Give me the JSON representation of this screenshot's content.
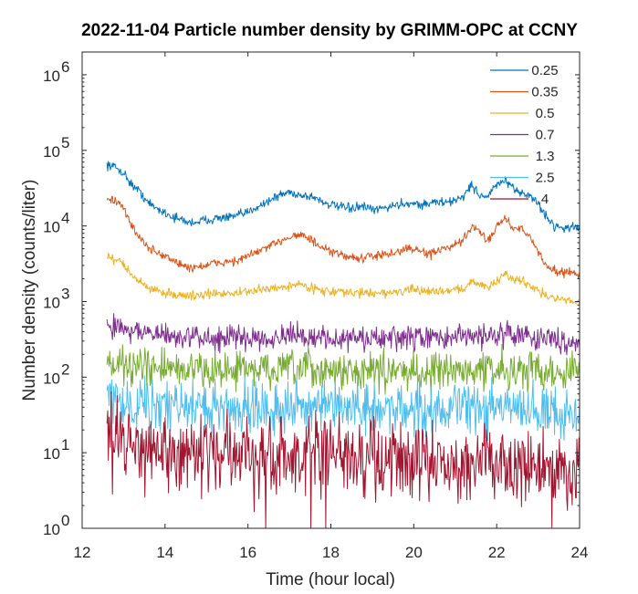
{
  "chart_data": {
    "type": "line",
    "title": "2022-11-04 Particle number density by GRIMM-OPC at CCNY",
    "xlabel": "Time (hour local)",
    "ylabel": "Number density (counts/liter)",
    "xlim": [
      12,
      24
    ],
    "ylim": [
      1,
      2000000
    ],
    "yscale": "log",
    "xticks": [
      12,
      14,
      16,
      18,
      20,
      22,
      24
    ],
    "xtick_labels": [
      "12",
      "14",
      "16",
      "18",
      "20",
      "22",
      "24"
    ],
    "yticks": [
      1,
      10,
      100,
      1000,
      10000,
      100000,
      1000000
    ],
    "ytick_labels": [
      {
        "base": "10",
        "exp": "0"
      },
      {
        "base": "10",
        "exp": "1"
      },
      {
        "base": "10",
        "exp": "2"
      },
      {
        "base": "10",
        "exp": "3"
      },
      {
        "base": "10",
        "exp": "4"
      },
      {
        "base": "10",
        "exp": "5"
      },
      {
        "base": "10",
        "exp": "6"
      }
    ],
    "legend_position": "top-right",
    "x": [
      12.6,
      12.8,
      13.0,
      13.2,
      13.4,
      13.6,
      13.8,
      14.0,
      14.2,
      14.4,
      14.6,
      14.8,
      15.0,
      15.2,
      15.4,
      15.6,
      15.8,
      16.0,
      16.2,
      16.4,
      16.6,
      16.8,
      17.0,
      17.2,
      17.4,
      17.6,
      17.8,
      18.0,
      18.2,
      18.4,
      18.6,
      18.8,
      19.0,
      19.2,
      19.4,
      19.6,
      19.8,
      20.0,
      20.2,
      20.4,
      20.6,
      20.8,
      21.0,
      21.2,
      21.4,
      21.6,
      21.8,
      22.0,
      22.2,
      22.4,
      22.6,
      22.8,
      23.0,
      23.2,
      23.4,
      23.6,
      23.8,
      24.0
    ],
    "series": [
      {
        "name": "0.25",
        "color": "#0072BD",
        "noise": 0.05,
        "values": [
          65000,
          60000,
          50000,
          35000,
          28000,
          20000,
          17000,
          15000,
          13000,
          12000,
          11000,
          11500,
          12000,
          12500,
          13000,
          13000,
          14000,
          15000,
          18000,
          20000,
          23000,
          26000,
          28000,
          26000,
          25000,
          24000,
          21000,
          19000,
          18000,
          17000,
          17500,
          18000,
          16000,
          17000,
          18000,
          19000,
          20000,
          20000,
          19000,
          20000,
          21000,
          20000,
          22000,
          25000,
          35000,
          25000,
          25000,
          35000,
          40000,
          30000,
          28000,
          25000,
          20000,
          13000,
          10000,
          9500,
          9500,
          9600
        ]
      },
      {
        "name": "0.35",
        "color": "#D95319",
        "noise": 0.05,
        "values": [
          24000,
          21000,
          17000,
          10000,
          7000,
          5000,
          4500,
          4000,
          3500,
          3000,
          2800,
          2900,
          3000,
          3200,
          3300,
          3400,
          3500,
          4000,
          4500,
          5000,
          5500,
          6500,
          7200,
          7800,
          7200,
          6000,
          5000,
          4500,
          4200,
          4000,
          3800,
          3600,
          4200,
          4000,
          4200,
          4500,
          5000,
          5000,
          4500,
          4200,
          4800,
          5000,
          5500,
          6500,
          10000,
          8000,
          6500,
          10000,
          13000,
          9000,
          10000,
          7000,
          4500,
          3000,
          2600,
          2400,
          2400,
          2400
        ]
      },
      {
        "name": "0.5",
        "color": "#EDB120",
        "noise": 0.05,
        "values": [
          3800,
          3500,
          3200,
          2200,
          1800,
          1500,
          1400,
          1300,
          1250,
          1200,
          1200,
          1200,
          1250,
          1250,
          1300,
          1300,
          1300,
          1350,
          1400,
          1450,
          1500,
          1550,
          1600,
          1700,
          1600,
          1500,
          1400,
          1350,
          1350,
          1300,
          1300,
          1300,
          1300,
          1300,
          1300,
          1350,
          1400,
          1400,
          1400,
          1350,
          1400,
          1400,
          1450,
          1500,
          1800,
          1700,
          1600,
          1800,
          2300,
          2000,
          1900,
          1700,
          1400,
          1200,
          1100,
          1050,
          1000,
          1000
        ]
      },
      {
        "name": "0.7",
        "color": "#7E2F8E",
        "noise": 0.13,
        "values": [
          480,
          470,
          450,
          420,
          400,
          380,
          360,
          350,
          350,
          340,
          330,
          330,
          330,
          330,
          330,
          330,
          330,
          330,
          340,
          340,
          340,
          340,
          340,
          340,
          340,
          340,
          330,
          330,
          320,
          320,
          320,
          320,
          320,
          320,
          320,
          320,
          330,
          330,
          330,
          330,
          330,
          330,
          330,
          340,
          360,
          360,
          360,
          360,
          380,
          380,
          360,
          350,
          340,
          320,
          310,
          300,
          300,
          300
        ]
      },
      {
        "name": "1.3",
        "color": "#77AC30",
        "noise": 0.2,
        "values": [
          150,
          150,
          145,
          140,
          135,
          130,
          130,
          130,
          128,
          125,
          125,
          125,
          125,
          125,
          125,
          125,
          125,
          125,
          125,
          125,
          125,
          125,
          125,
          125,
          125,
          125,
          120,
          120,
          120,
          120,
          120,
          120,
          120,
          120,
          120,
          120,
          120,
          120,
          120,
          120,
          120,
          120,
          120,
          120,
          125,
          125,
          125,
          125,
          125,
          125,
          125,
          125,
          125,
          120,
          120,
          120,
          120,
          120
        ]
      },
      {
        "name": "2.5",
        "color": "#4DBEEE",
        "noise": 0.28,
        "values": [
          55,
          52,
          50,
          48,
          46,
          44,
          42,
          42,
          41,
          40,
          40,
          40,
          40,
          40,
          40,
          40,
          40,
          40,
          40,
          40,
          40,
          40,
          40,
          40,
          40,
          40,
          38,
          38,
          38,
          38,
          38,
          38,
          38,
          38,
          38,
          38,
          38,
          38,
          38,
          38,
          38,
          38,
          38,
          38,
          38,
          38,
          38,
          38,
          38,
          38,
          38,
          38,
          36,
          34,
          34,
          33,
          33,
          33
        ]
      },
      {
        "name": "4",
        "color": "#A2142F",
        "noise": 0.4,
        "values": [
          18,
          17,
          16,
          14,
          12,
          12,
          11,
          11,
          10,
          10,
          10,
          10,
          10,
          10,
          10,
          9.5,
          9.5,
          9.5,
          9.5,
          9.5,
          9.5,
          9.5,
          9.5,
          9,
          9,
          9,
          9,
          8.5,
          8.5,
          8.5,
          8.5,
          8.5,
          8.5,
          8,
          8,
          8,
          8,
          7.5,
          7.5,
          7.5,
          7.5,
          7.5,
          7.5,
          7.5,
          7.5,
          7.5,
          7.5,
          7.5,
          7.5,
          7,
          7,
          7,
          6.5,
          6,
          6,
          6,
          5.5,
          5.5
        ]
      }
    ]
  }
}
